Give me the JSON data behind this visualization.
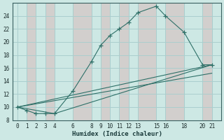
{
  "xlabel": "Humidex (Indice chaleur)",
  "line_color": "#2e7068",
  "bg_color": "#cde8e4",
  "grid_major_color": "#aacece",
  "grid_minor_color": "#d4b8b8",
  "xlim": [
    -0.5,
    22
  ],
  "ylim": [
    8,
    26
  ],
  "xticks": [
    0,
    1,
    2,
    3,
    4,
    6,
    8,
    9,
    10,
    11,
    12,
    13,
    15,
    16,
    18,
    20,
    21
  ],
  "yticks": [
    8,
    10,
    12,
    14,
    16,
    18,
    20,
    22,
    24
  ],
  "curve1_x": [
    0,
    1,
    2,
    3,
    4,
    6,
    8,
    9,
    10,
    11,
    12,
    13,
    15,
    16,
    18,
    20,
    21
  ],
  "curve1_y": [
    10.0,
    9.5,
    9.0,
    9.0,
    9.0,
    12.5,
    17.0,
    19.5,
    21.0,
    22.0,
    23.0,
    24.5,
    25.5,
    24.0,
    21.5,
    16.5,
    16.5
  ],
  "curve2_x": [
    0,
    4,
    21
  ],
  "curve2_y": [
    10.0,
    9.0,
    16.5
  ],
  "curve3_x": [
    0,
    21
  ],
  "curve3_y": [
    10.0,
    16.5
  ],
  "curve4_x": [
    0,
    21
  ],
  "curve4_y": [
    10.0,
    15.2
  ]
}
